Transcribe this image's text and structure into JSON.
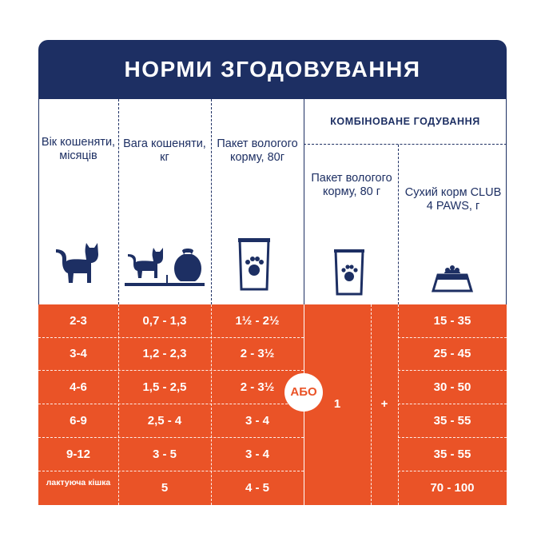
{
  "title": "НОРМИ ЗГОДОВУВАННЯ",
  "colors": {
    "navy": "#1d2f63",
    "orange": "#ea5327",
    "white": "#ffffff"
  },
  "headers": {
    "age": "Вік кошеняти, місяців",
    "weight": "Вага кошеняти, кг",
    "wet_pack": "Пакет вологого корму, 80г",
    "combined_title": "КОМБІНОВАНЕ ГОДУВАННЯ",
    "combined_wet": "Пакет вологого корму, 80 г",
    "combined_dry": "Сухий корм CLUB 4 PAWS, г"
  },
  "icons": {
    "age": "cat-icon",
    "weight": "cat-with-weight-icon",
    "wet_pack": "wet-food-pouch-icon",
    "combined_wet": "wet-food-pouch-icon",
    "combined_dry": "food-bowl-icon"
  },
  "or_label": "АБО",
  "plus_label": "+",
  "combined_wet_value": "1",
  "rows": [
    {
      "age": "2-3",
      "weight": "0,7 - 1,3",
      "wet": "1½ - 2½",
      "dry": "15 - 35"
    },
    {
      "age": "3-4",
      "weight": "1,2 - 2,3",
      "wet": "2 - 3½",
      "dry": "25 - 45"
    },
    {
      "age": "4-6",
      "weight": "1,5 - 2,5",
      "wet": "2 - 3½",
      "dry": "30 - 50"
    },
    {
      "age": "6-9",
      "weight": "2,5 - 4",
      "wet": "3 - 4",
      "dry": "35 - 55"
    },
    {
      "age": "9-12",
      "weight": "3 - 5",
      "wet": "3 - 4",
      "dry": "35 - 55"
    },
    {
      "age": "лактуюча кішка",
      "weight": "5",
      "wet": "4 - 5",
      "dry": "70 - 100"
    }
  ]
}
